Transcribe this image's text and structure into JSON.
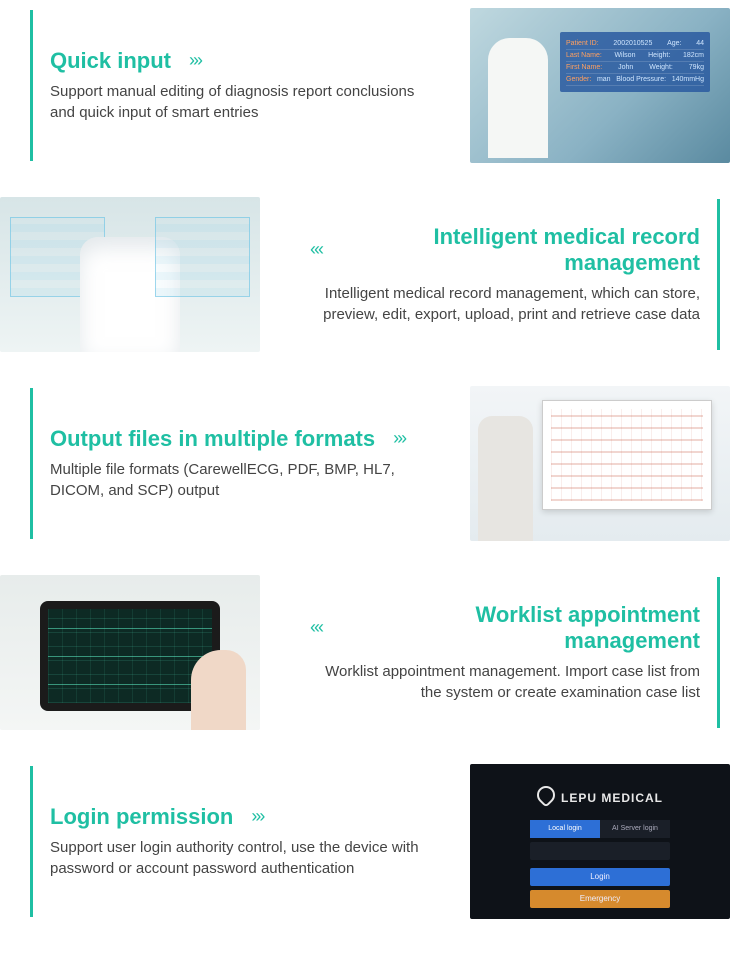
{
  "colors": {
    "accent": "#1fbfa3",
    "text": "#3a3a3a"
  },
  "chevrons": {
    "right": "›››",
    "left": "‹‹‹"
  },
  "sections": [
    {
      "title": "Quick input",
      "desc": "Support manual editing of diagnosis report conclusions and quick input of smart entries",
      "align": "left",
      "image": {
        "kind": "patient-info-overlay",
        "rows": [
          [
            "Patient ID:",
            "2002010525",
            "Age:",
            "44"
          ],
          [
            "Last Name:",
            "Wilson",
            "Height:",
            "182cm"
          ],
          [
            "First Name:",
            "John",
            "Weight:",
            "79kg"
          ],
          [
            "Gender:",
            "man",
            "Blood Pressure:",
            "140mmHg"
          ]
        ]
      }
    },
    {
      "title": "Intelligent medical record management",
      "desc": "Intelligent medical record management, which can store, preview, edit, export, upload, print and retrieve case data",
      "align": "right",
      "image": {
        "kind": "doctor-holo-panels"
      }
    },
    {
      "title": "Output files in multiple formats",
      "desc": "Multiple file formats (CarewellECG, PDF, BMP, HL7, DICOM, and SCP) output",
      "align": "left",
      "image": {
        "kind": "monitor-report"
      }
    },
    {
      "title": "Worklist appointment management",
      "desc": "Worklist appointment management. Import case list from the system or create examination case list",
      "align": "right",
      "image": {
        "kind": "tablet-ecg"
      }
    },
    {
      "title": "Login permission",
      "desc": "Support user login authority control, use the device with password or account password authentication",
      "align": "left",
      "image": {
        "kind": "login-screen",
        "brand": "LEPU MEDICAL",
        "tab_a": "Local login",
        "tab_b": "AI Server login",
        "login_btn": "Login",
        "emergency_btn": "Emergency"
      }
    }
  ]
}
